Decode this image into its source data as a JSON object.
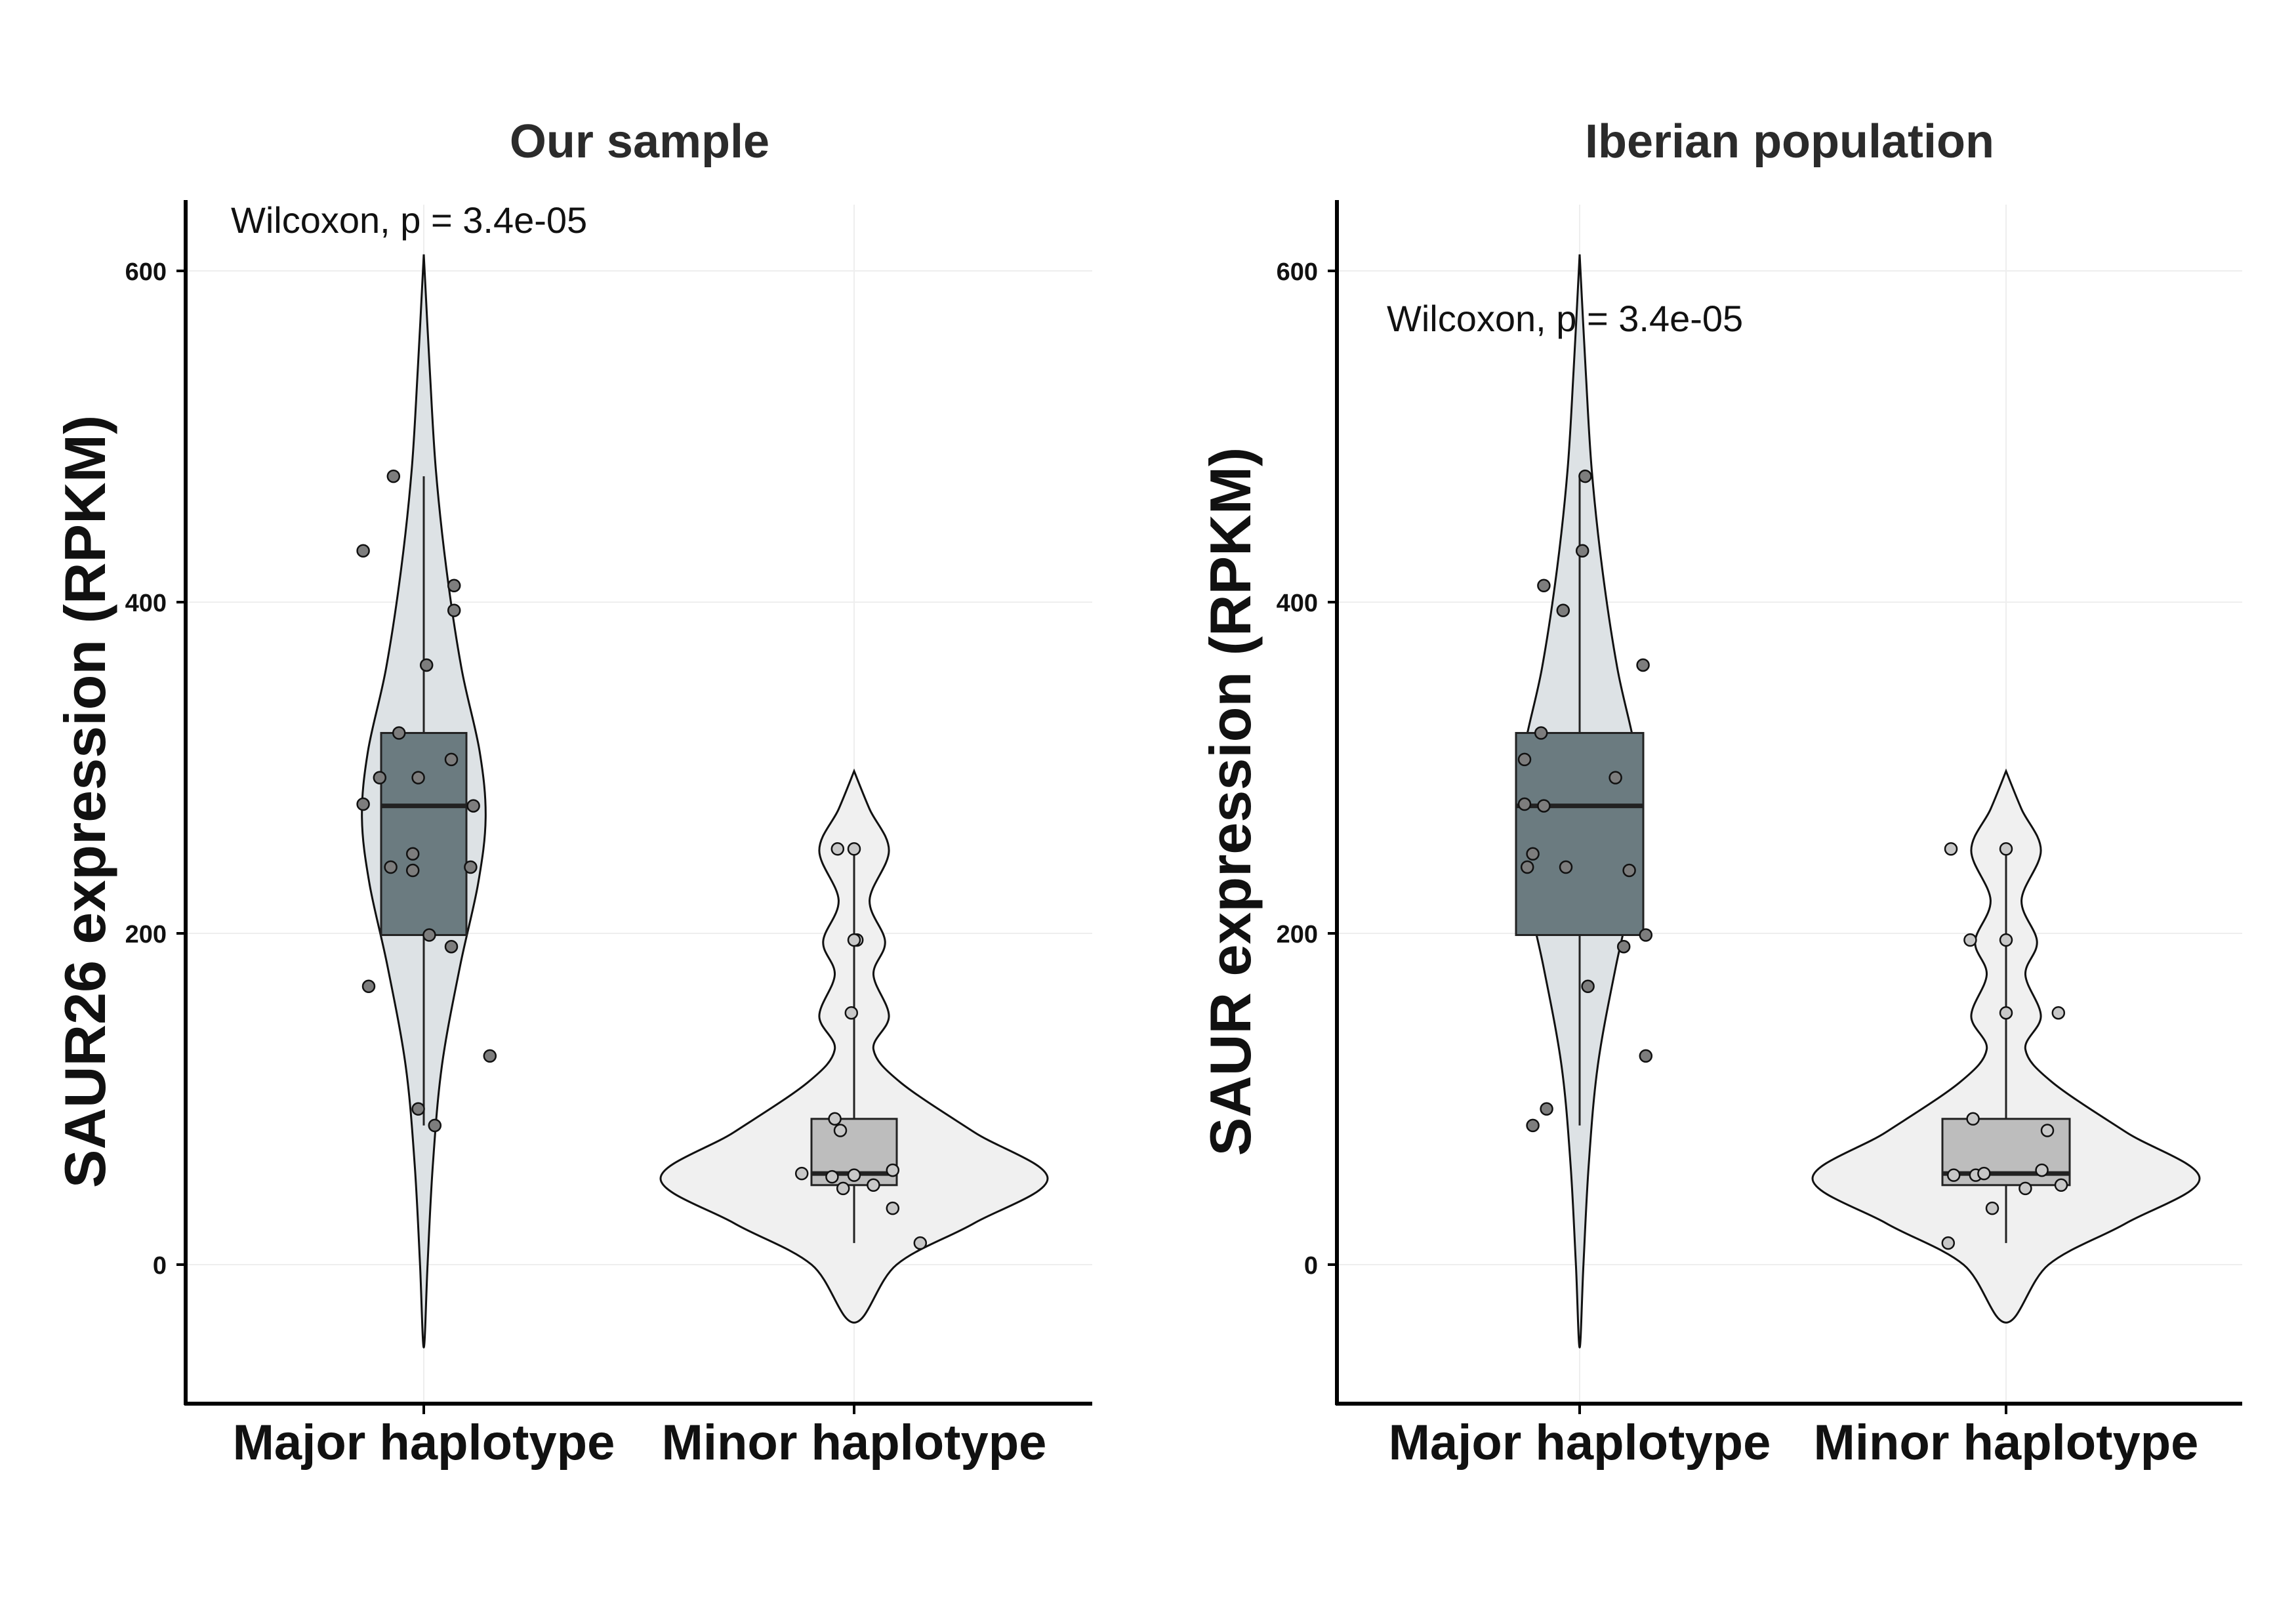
{
  "chart_data": [
    {
      "type": "violin",
      "title": "Our sample",
      "ylabel": "SAUR26 expression (RPKM)",
      "xlabel": "",
      "categories": [
        "Major haplotype",
        "Minor haplotype"
      ],
      "yticks": [
        0,
        200,
        400,
        600
      ],
      "ylim": [
        -85,
        640
      ],
      "grid": true,
      "legend": "none",
      "annotation": "Wilcoxon, p = 3.4e-05",
      "annotation_position": "top-left",
      "colors": {
        "major": "#6b7b80",
        "major_violin": "#dde2e5",
        "minor": "#bdbdbd",
        "minor_violin": "#f0f0f0"
      },
      "groups": [
        {
          "name": "Major haplotype",
          "box": {
            "q1": 199,
            "median": 277,
            "q3": 321,
            "whisker_low": 84,
            "whisker_high": 476
          },
          "violin_range": [
            -50,
            610
          ],
          "points": [
            [
              -0.11,
              476
            ],
            [
              -0.22,
              431
            ],
            [
              0.11,
              410
            ],
            [
              0.11,
              395
            ],
            [
              0.01,
              362
            ],
            [
              -0.09,
              321
            ],
            [
              -0.02,
              294
            ],
            [
              -0.16,
              294
            ],
            [
              0.1,
              305
            ],
            [
              -0.22,
              278
            ],
            [
              0.18,
              277
            ],
            [
              -0.04,
              248
            ],
            [
              -0.12,
              240
            ],
            [
              -0.04,
              238
            ],
            [
              0.17,
              240
            ],
            [
              0.02,
              199
            ],
            [
              0.1,
              192
            ],
            [
              -0.2,
              168
            ],
            [
              -0.02,
              94
            ],
            [
              0.04,
              84
            ],
            [
              0.24,
              126
            ]
          ]
        },
        {
          "name": "Minor haplotype",
          "box": {
            "q1": 48,
            "median": 55,
            "q3": 88,
            "whisker_low": 13,
            "whisker_high": 251
          },
          "violin_range": [
            -35,
            298
          ],
          "points": [
            [
              -0.06,
              251
            ],
            [
              0,
              251
            ],
            [
              0.01,
              196
            ],
            [
              0,
              196
            ],
            [
              -0.01,
              152
            ],
            [
              -0.07,
              88
            ],
            [
              -0.05,
              81
            ],
            [
              -0.19,
              55
            ],
            [
              -0.08,
              53
            ],
            [
              -0.04,
              46
            ],
            [
              0,
              54
            ],
            [
              0.07,
              48
            ],
            [
              0.14,
              34
            ],
            [
              0.24,
              13
            ],
            [
              0.14,
              57
            ]
          ]
        }
      ]
    },
    {
      "type": "violin",
      "title": "Iberian population",
      "ylabel": "SAUR expression (RPKM)",
      "xlabel": "",
      "categories": [
        "Major haplotype",
        "Minor haplotype"
      ],
      "yticks": [
        0,
        200,
        400,
        600
      ],
      "ylim": [
        -85,
        640
      ],
      "grid": true,
      "legend": "none",
      "annotation": "Wilcoxon, p = 3.4e-05",
      "annotation_position": "top-left",
      "colors": {
        "major": "#6b7b80",
        "major_violin": "#dde2e5",
        "minor": "#bdbdbd",
        "minor_violin": "#f0f0f0"
      },
      "groups": [
        {
          "name": "Major haplotype",
          "box": {
            "q1": 199,
            "median": 277,
            "q3": 321,
            "whisker_low": 84,
            "whisker_high": 476
          },
          "violin_range": [
            -50,
            610
          ],
          "points": [
            [
              0.02,
              476
            ],
            [
              0.01,
              431
            ],
            [
              -0.13,
              410
            ],
            [
              -0.06,
              395
            ],
            [
              0.23,
              362
            ],
            [
              -0.14,
              321
            ],
            [
              -0.2,
              305
            ],
            [
              0.13,
              294
            ],
            [
              -0.2,
              278
            ],
            [
              -0.13,
              277
            ],
            [
              -0.17,
              248
            ],
            [
              -0.19,
              240
            ],
            [
              -0.05,
              240
            ],
            [
              0.18,
              238
            ],
            [
              0.24,
              199
            ],
            [
              0.16,
              192
            ],
            [
              0.03,
              168
            ],
            [
              0.24,
              126
            ],
            [
              -0.12,
              94
            ],
            [
              -0.17,
              84
            ]
          ]
        },
        {
          "name": "Minor haplotype",
          "box": {
            "q1": 48,
            "median": 55,
            "q3": 88,
            "whisker_low": 13,
            "whisker_high": 251
          },
          "violin_range": [
            -35,
            298
          ],
          "points": [
            [
              -0.2,
              251
            ],
            [
              0,
              251
            ],
            [
              -0.13,
              196
            ],
            [
              0,
              196
            ],
            [
              0,
              152
            ],
            [
              0.19,
              152
            ],
            [
              -0.12,
              88
            ],
            [
              0.15,
              81
            ],
            [
              -0.19,
              54
            ],
            [
              -0.11,
              54
            ],
            [
              -0.08,
              55
            ],
            [
              0.13,
              57
            ],
            [
              0.2,
              48
            ],
            [
              0.07,
              46
            ],
            [
              -0.05,
              34
            ],
            [
              -0.21,
              13
            ]
          ]
        }
      ]
    }
  ]
}
